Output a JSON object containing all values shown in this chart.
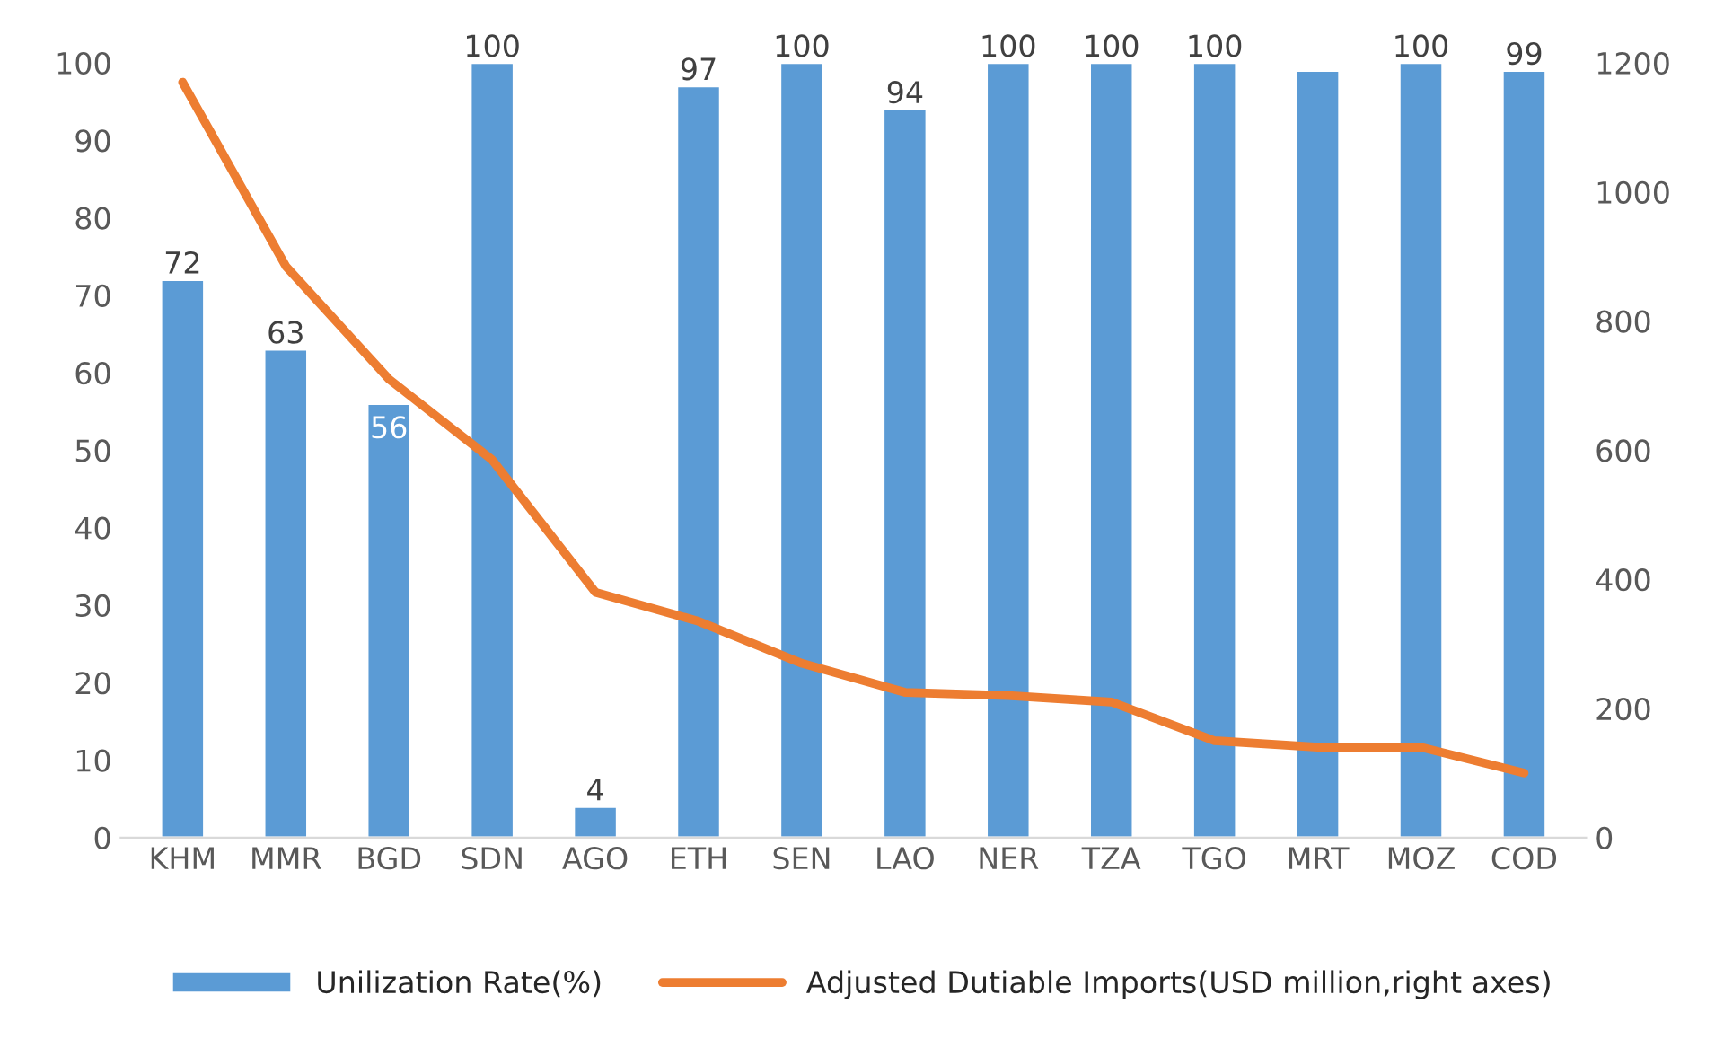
{
  "chart_data": {
    "type": "bar",
    "categories": [
      "KHM",
      "MMR",
      "BGD",
      "SDN",
      "AGO",
      "ETH",
      "SEN",
      "LAO",
      "NER",
      "TZA",
      "TGO",
      "MRT",
      "MOZ",
      "COD"
    ],
    "series": [
      {
        "name": "Unilization Rate(%)",
        "color": "#5b9bd5",
        "values": [
          72,
          63,
          56,
          100,
          4,
          97,
          100,
          94,
          100,
          100,
          100,
          99,
          100,
          99
        ],
        "value_labels": [
          "72",
          "63",
          "56",
          "100",
          "4",
          "97",
          "100",
          "94",
          "100",
          "100",
          "100",
          null,
          "100",
          "99"
        ]
      },
      {
        "name": "Adjusted Dutiable Imports(USD million,right axes)",
        "type": "line",
        "axis": "y2",
        "color": "#ed7d31",
        "values": [
          1170,
          885,
          710,
          585,
          380,
          335,
          270,
          225,
          220,
          210,
          150,
          140,
          140,
          100
        ]
      }
    ],
    "ylim": [
      0,
      100
    ],
    "yticks": [
      0,
      10,
      20,
      30,
      40,
      50,
      60,
      70,
      80,
      90,
      100
    ],
    "y2lim": [
      0,
      1200
    ],
    "y2ticks": [
      0,
      200,
      400,
      600,
      800,
      1000,
      1200
    ],
    "grid": false,
    "legend": "bottom",
    "marker": "none",
    "line_style": "solid"
  }
}
